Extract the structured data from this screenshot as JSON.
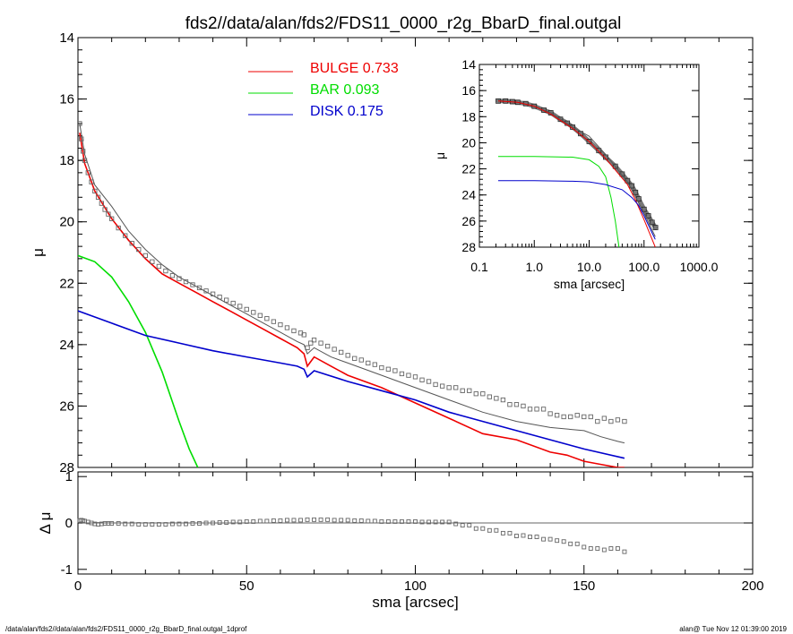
{
  "title": "fds2//data/alan/fds2/FDS11_0000_r2g_BbarD_final.outgal",
  "footer": {
    "left": "/data/alan/fds2//data/alan/fds2/FDS11_0000_r2g_BbarD_final.outgal_1dprof",
    "right": "alan@  Tue Nov 12 01:39:00 2019"
  },
  "legend": [
    {
      "label": "BULGE",
      "value": "0.733",
      "color": "#ee0000"
    },
    {
      "label": "BAR",
      "value": "0.093",
      "color": "#00dd00"
    },
    {
      "label": "DISK",
      "value": "0.175",
      "color": "#0000cc"
    }
  ],
  "colors": {
    "bulge": "#ee0000",
    "bar": "#00dd00",
    "disk": "#0000cc",
    "model": "#555555",
    "data": "#666666",
    "residual_zero": "#666666"
  },
  "chart_data": [
    {
      "id": "main",
      "type": "line",
      "xlim": [
        0,
        200
      ],
      "ylim": [
        28,
        14
      ],
      "yticks": [
        "14",
        "16",
        "18",
        "20",
        "22",
        "24",
        "26",
        "28"
      ],
      "ylabel": "μ",
      "x_ticks_shared_with": "residual",
      "series": [
        {
          "name": "BULGE",
          "x": [
            0.5,
            2,
            5,
            10,
            15,
            20,
            25,
            30,
            35,
            40,
            45,
            50,
            55,
            60,
            65,
            67,
            68,
            70,
            75,
            80,
            90,
            100,
            110,
            120,
            130,
            140,
            145,
            150,
            155,
            160,
            162
          ],
          "y": [
            17.1,
            18.1,
            19.0,
            19.9,
            20.6,
            21.2,
            21.7,
            22.0,
            22.3,
            22.6,
            22.9,
            23.2,
            23.5,
            23.8,
            24.1,
            24.3,
            24.7,
            24.4,
            24.7,
            25.0,
            25.4,
            25.9,
            26.4,
            26.9,
            27.1,
            27.5,
            27.6,
            27.8,
            27.9,
            28.0,
            28.0
          ]
        },
        {
          "name": "BAR",
          "x": [
            0,
            5,
            10,
            15,
            20,
            25,
            30,
            33,
            35.5
          ],
          "y": [
            21.1,
            21.3,
            21.8,
            22.6,
            23.6,
            24.9,
            26.5,
            27.4,
            28.0
          ]
        },
        {
          "name": "DISK",
          "x": [
            0,
            10,
            20,
            30,
            40,
            50,
            60,
            65,
            67,
            68,
            70,
            80,
            90,
            100,
            110,
            120,
            130,
            140,
            150,
            162
          ],
          "y": [
            22.9,
            23.3,
            23.7,
            23.95,
            24.2,
            24.4,
            24.6,
            24.7,
            24.8,
            25.05,
            24.85,
            25.2,
            25.5,
            25.8,
            26.2,
            26.5,
            26.8,
            27.1,
            27.4,
            27.7
          ]
        },
        {
          "name": "model",
          "x": [
            0.5,
            2,
            5,
            10,
            15,
            20,
            25,
            30,
            35,
            40,
            45,
            50,
            55,
            60,
            65,
            67,
            68,
            70,
            75,
            80,
            90,
            100,
            110,
            120,
            130,
            140,
            150,
            155,
            160,
            162
          ],
          "y": [
            16.8,
            17.8,
            18.8,
            19.5,
            20.3,
            20.9,
            21.4,
            21.8,
            22.1,
            22.4,
            22.7,
            23.0,
            23.3,
            23.6,
            23.9,
            24.0,
            24.3,
            24.1,
            24.4,
            24.6,
            25.0,
            25.4,
            25.8,
            26.2,
            26.5,
            26.7,
            26.8,
            27.0,
            27.15,
            27.2
          ]
        },
        {
          "name": "data",
          "x": [
            0.5,
            1,
            1.5,
            2,
            3,
            4,
            5,
            6,
            7,
            8,
            9,
            10,
            12,
            14,
            16,
            18,
            20,
            22,
            24,
            26,
            28,
            30,
            32,
            34,
            36,
            38,
            40,
            42,
            44,
            46,
            48,
            50,
            52,
            54,
            56,
            58,
            60,
            62,
            64,
            66,
            67,
            68,
            69,
            70,
            72,
            74,
            76,
            78,
            80,
            82,
            84,
            86,
            88,
            90,
            92,
            94,
            96,
            98,
            100,
            102,
            104,
            106,
            108,
            110,
            112,
            114,
            116,
            118,
            120,
            122,
            124,
            126,
            128,
            130,
            132,
            134,
            136,
            138,
            140,
            142,
            144,
            146,
            148,
            150,
            152,
            154,
            156,
            158,
            160,
            162
          ],
          "y": [
            16.8,
            17.3,
            17.7,
            18.0,
            18.4,
            18.7,
            19.0,
            19.2,
            19.4,
            19.6,
            19.75,
            19.9,
            20.2,
            20.45,
            20.7,
            20.9,
            21.1,
            21.3,
            21.45,
            21.6,
            21.75,
            21.85,
            21.95,
            22.05,
            22.15,
            22.25,
            22.35,
            22.45,
            22.55,
            22.65,
            22.75,
            22.85,
            22.95,
            23.05,
            23.15,
            23.25,
            23.35,
            23.45,
            23.55,
            23.62,
            23.68,
            24.1,
            23.95,
            23.85,
            23.95,
            24.05,
            24.15,
            24.25,
            24.35,
            24.45,
            24.5,
            24.6,
            24.65,
            24.75,
            24.8,
            24.85,
            24.95,
            25.0,
            25.05,
            25.15,
            25.2,
            25.3,
            25.35,
            25.4,
            25.4,
            25.5,
            25.5,
            25.6,
            25.6,
            25.7,
            25.75,
            25.8,
            25.95,
            25.95,
            26.0,
            26.1,
            26.1,
            26.1,
            26.25,
            26.3,
            26.35,
            26.35,
            26.3,
            26.35,
            26.35,
            26.5,
            26.4,
            26.5,
            26.45,
            26.5
          ]
        }
      ]
    },
    {
      "id": "residual",
      "type": "scatter",
      "xlim": [
        0,
        200
      ],
      "ylim": [
        -1.1,
        1.1
      ],
      "yticks": [
        "1",
        "0",
        "-1"
      ],
      "xticks": [
        "0",
        "50",
        "100",
        "150",
        "200"
      ],
      "xlabel": "sma [arcsec]",
      "ylabel": "Δ μ",
      "series": [
        {
          "name": "residual",
          "x": [
            0.5,
            1,
            1.5,
            2,
            3,
            4,
            5,
            6,
            7,
            8,
            9,
            10,
            12,
            14,
            16,
            18,
            20,
            22,
            24,
            26,
            28,
            30,
            32,
            34,
            36,
            38,
            40,
            42,
            44,
            46,
            48,
            50,
            52,
            54,
            56,
            58,
            60,
            62,
            64,
            66,
            68,
            70,
            72,
            74,
            76,
            78,
            80,
            82,
            84,
            86,
            88,
            90,
            92,
            94,
            96,
            98,
            100,
            102,
            104,
            106,
            108,
            110,
            112,
            114,
            116,
            118,
            120,
            122,
            124,
            126,
            128,
            130,
            132,
            134,
            136,
            138,
            140,
            142,
            144,
            146,
            148,
            150,
            152,
            154,
            156,
            158,
            160,
            162
          ],
          "y": [
            0.05,
            0.06,
            0.05,
            0.04,
            0.02,
            0.0,
            -0.02,
            -0.03,
            -0.02,
            -0.01,
            -0.01,
            -0.01,
            -0.01,
            -0.02,
            -0.02,
            -0.03,
            -0.03,
            -0.03,
            -0.03,
            -0.03,
            -0.02,
            -0.02,
            -0.02,
            -0.01,
            -0.01,
            0.0,
            0.0,
            0.01,
            0.01,
            0.02,
            0.02,
            0.03,
            0.03,
            0.04,
            0.04,
            0.05,
            0.05,
            0.06,
            0.06,
            0.06,
            0.07,
            0.07,
            0.07,
            0.07,
            0.06,
            0.06,
            0.06,
            0.05,
            0.05,
            0.04,
            0.04,
            0.03,
            0.03,
            0.03,
            0.03,
            0.03,
            0.03,
            0.02,
            0.02,
            0.02,
            0.02,
            0.02,
            -0.02,
            -0.05,
            -0.05,
            -0.12,
            -0.12,
            -0.16,
            -0.16,
            -0.22,
            -0.22,
            -0.28,
            -0.27,
            -0.3,
            -0.3,
            -0.35,
            -0.35,
            -0.38,
            -0.4,
            -0.45,
            -0.45,
            -0.52,
            -0.55,
            -0.55,
            -0.58,
            -0.55,
            -0.55,
            -0.62
          ]
        }
      ]
    },
    {
      "id": "inset",
      "type": "line",
      "x_scale": "log",
      "xlim": [
        0.1,
        1000
      ],
      "ylim": [
        28,
        14
      ],
      "xticks": [
        "0.1",
        "1.0",
        "10.0",
        "100.0",
        "1000.0"
      ],
      "yticks": [
        "14",
        "16",
        "18",
        "20",
        "22",
        "24",
        "26",
        "28"
      ],
      "xlabel": "sma [arcsec]",
      "ylabel": "μ",
      "series": [
        {
          "name": "data",
          "x": [
            0.22,
            0.3,
            0.4,
            0.5,
            0.7,
            1,
            1.5,
            2,
            3,
            4,
            5,
            7,
            10,
            15,
            20,
            30,
            40,
            50,
            60,
            70,
            80,
            100,
            120,
            140,
            162
          ],
          "y": [
            16.8,
            16.8,
            16.85,
            16.9,
            17.0,
            17.2,
            17.5,
            17.7,
            18.2,
            18.5,
            18.8,
            19.3,
            19.9,
            20.6,
            21.1,
            21.8,
            22.4,
            22.9,
            23.3,
            23.8,
            24.3,
            25.1,
            25.6,
            26.1,
            26.5
          ]
        },
        {
          "name": "model",
          "x": [
            0.22,
            0.5,
            1,
            2,
            5,
            10,
            20,
            50,
            100,
            160
          ],
          "y": [
            16.75,
            16.9,
            17.2,
            17.7,
            18.8,
            19.5,
            20.9,
            23.0,
            25.4,
            27.2
          ]
        },
        {
          "name": "BULGE",
          "x": [
            0.22,
            0.5,
            1,
            2,
            5,
            10,
            20,
            50,
            70,
            100,
            160
          ],
          "y": [
            16.8,
            16.9,
            17.2,
            17.8,
            18.9,
            19.9,
            21.2,
            23.2,
            24.4,
            25.9,
            28.0
          ]
        },
        {
          "name": "BAR",
          "x": [
            0.22,
            1,
            5,
            10,
            15,
            20,
            25,
            30,
            35
          ],
          "y": [
            21.05,
            21.05,
            21.1,
            21.3,
            21.8,
            22.6,
            24.2,
            26.0,
            28.0
          ]
        },
        {
          "name": "DISK",
          "x": [
            0.22,
            1,
            5,
            10,
            20,
            40,
            60,
            80,
            100,
            140,
            160
          ],
          "y": [
            22.9,
            22.9,
            22.95,
            23.0,
            23.2,
            23.6,
            24.2,
            24.8,
            25.6,
            26.9,
            27.4
          ]
        }
      ]
    }
  ]
}
